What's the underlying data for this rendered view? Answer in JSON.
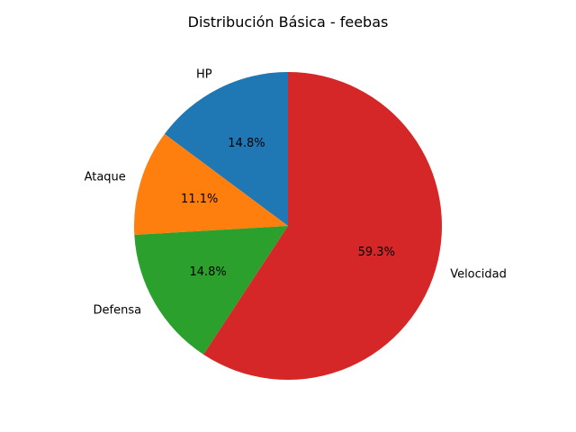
{
  "chart_data": {
    "type": "pie",
    "title": "Distribución Básica - feebas",
    "categories": [
      "HP",
      "Ataque",
      "Defensa",
      "Velocidad"
    ],
    "values": [
      20,
      15,
      20,
      80
    ],
    "percent_labels": [
      "14.8%",
      "11.1%",
      "14.8%",
      "59.3%"
    ],
    "colors": [
      "#1f77b4",
      "#ff7f0e",
      "#2ca02c",
      "#d62728"
    ],
    "start_angle_deg": 90,
    "direction": "counterclockwise",
    "legend": "none"
  }
}
